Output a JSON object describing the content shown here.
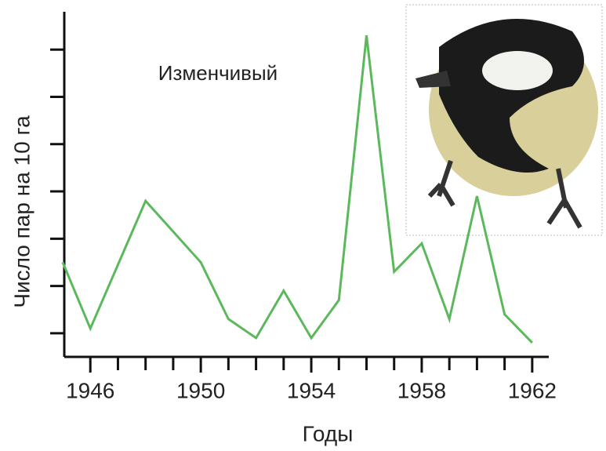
{
  "chart_data": {
    "type": "line",
    "title": "Изменчивый",
    "x_label": "Годы",
    "y_label": "Число пар на 10 га",
    "x": [
      1945,
      1946,
      1948,
      1950,
      1951,
      1952,
      1953,
      1954,
      1955,
      1956,
      1957,
      1958,
      1959,
      1960,
      1961,
      1962
    ],
    "values": [
      2.5,
      1.1,
      3.8,
      2.5,
      1.3,
      0.9,
      1.9,
      0.9,
      1.7,
      7.3,
      2.3,
      2.9,
      1.3,
      3.9,
      1.4,
      0.8
    ],
    "color": "#5cb85c",
    "xlim": [
      1945,
      1962.6
    ],
    "xticks": [
      1946,
      1950,
      1954,
      1958,
      1962
    ],
    "xminor_ticks": [
      1947,
      1948,
      1949,
      1951,
      1952,
      1953,
      1955,
      1956,
      1957,
      1959,
      1960,
      1961
    ],
    "ylim": [
      0.5,
      7.8
    ],
    "yticks": [
      1,
      2,
      3,
      4,
      5,
      6,
      7
    ]
  }
}
